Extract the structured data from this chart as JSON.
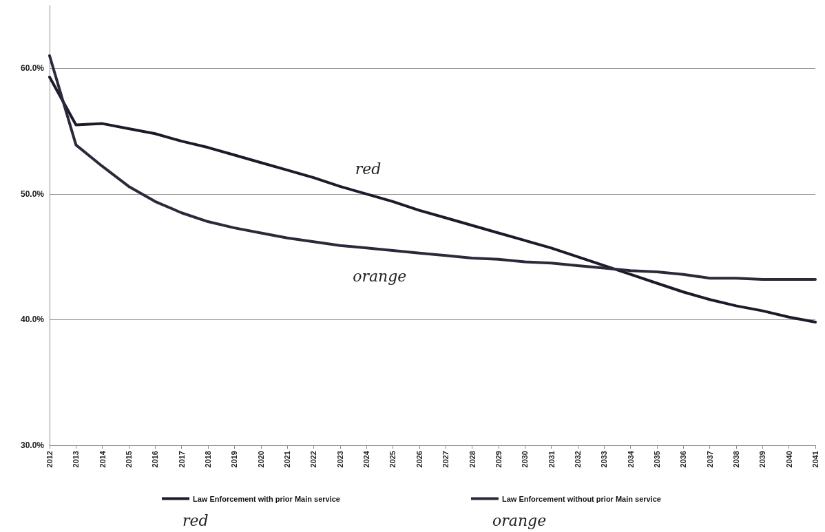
{
  "chart_data": {
    "type": "line",
    "categories": [
      "2012",
      "2013",
      "2014",
      "2015",
      "2016",
      "2017",
      "2018",
      "2019",
      "2020",
      "2021",
      "2022",
      "2023",
      "2024",
      "2025",
      "2026",
      "2027",
      "2028",
      "2029",
      "2030",
      "2031",
      "2032",
      "2033",
      "2034",
      "2035",
      "2036",
      "2037",
      "2038",
      "2039",
      "2040",
      "2041"
    ],
    "series": [
      {
        "name": "Law Enforcement with prior Main service",
        "color": "#1b1b2b",
        "values": [
          59.3,
          55.5,
          55.6,
          55.2,
          54.8,
          54.2,
          53.7,
          53.1,
          52.5,
          51.9,
          51.3,
          50.6,
          50.0,
          49.4,
          48.7,
          48.1,
          47.5,
          46.9,
          46.3,
          45.7,
          45.0,
          44.3,
          43.6,
          42.9,
          42.2,
          41.6,
          41.1,
          40.7,
          40.2,
          39.8
        ]
      },
      {
        "name": "Law Enforcement without prior Main service",
        "color": "#2a2a3a",
        "values": [
          61.0,
          53.9,
          52.2,
          50.6,
          49.4,
          48.5,
          47.8,
          47.3,
          46.9,
          46.5,
          46.2,
          45.9,
          45.7,
          45.5,
          45.3,
          45.1,
          44.9,
          44.8,
          44.6,
          44.5,
          44.3,
          44.1,
          43.9,
          43.8,
          43.6,
          43.3,
          43.3,
          43.2,
          43.2,
          43.2
        ]
      }
    ],
    "ylim": [
      30,
      65
    ],
    "yticks": [
      {
        "value": 30,
        "label": "30.0%"
      },
      {
        "value": 40,
        "label": "40.0%"
      },
      {
        "value": 50,
        "label": "50.0%"
      },
      {
        "value": 60,
        "label": "60.0%"
      }
    ],
    "grid": "y",
    "legend": "bottom",
    "marker": "none",
    "line_style": "solid",
    "annotations": [
      {
        "text": "red",
        "x": "2023",
        "y": 50.6
      },
      {
        "text": "orange",
        "x": "2024",
        "y": 45.7
      },
      "red",
      "orange"
    ]
  }
}
